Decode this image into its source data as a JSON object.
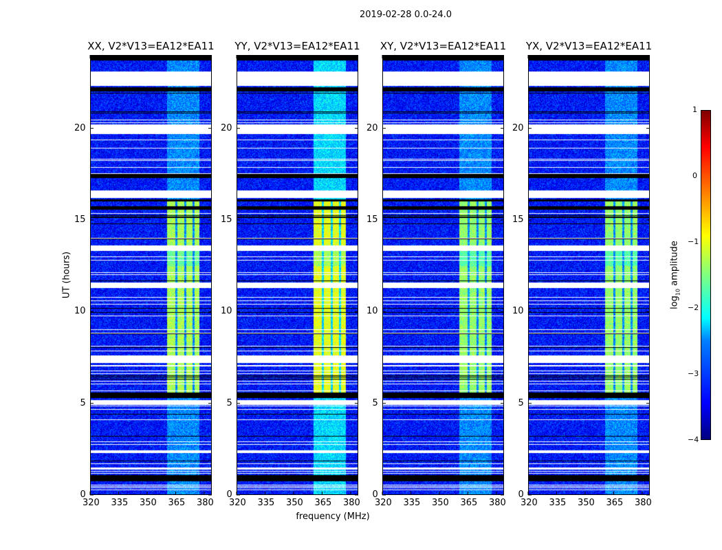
{
  "chart_data": {
    "type": "heatmap",
    "title": "2019-02-28 0.0-24.0",
    "xlabel": "frequency (MHz)",
    "ylabel": "UT (hours)",
    "xlim": [
      320,
      384
    ],
    "ylim": [
      0,
      24
    ],
    "xticks": [
      "320",
      "335",
      "350",
      "365",
      "380"
    ],
    "yticks": [
      "0",
      "5",
      "10",
      "15",
      "20"
    ],
    "panels": [
      {
        "title": "XX, V2*V13=EA12*EA11",
        "signal_level": -1.3
      },
      {
        "title": "YY, V2*V13=EA12*EA11",
        "signal_level": -1.0
      },
      {
        "title": "XY, V2*V13=EA12*EA11",
        "signal_level": -1.4
      },
      {
        "title": "YX, V2*V13=EA12*EA11",
        "signal_level": -1.4
      }
    ],
    "noise_level": -3.3,
    "signal_band_mhz": [
      360.5,
      377.5
    ],
    "signal_active_hours": [
      5.6,
      16.0
    ],
    "flagged_hours_white": [
      [
        22.3,
        23.1
      ],
      [
        19.7,
        20.2
      ],
      [
        16.2,
        16.6
      ],
      [
        13.3,
        13.6
      ],
      [
        11.3,
        11.6
      ],
      [
        7.2,
        7.6
      ],
      [
        4.95,
        5.15
      ],
      [
        2.3,
        2.45
      ],
      [
        1.4,
        1.5
      ]
    ],
    "zero_hours_black": [
      [
        23.7,
        24
      ],
      [
        22.0,
        22.25
      ],
      [
        17.3,
        17.5
      ],
      [
        16.0,
        16.1
      ],
      [
        15.55,
        15.75
      ],
      [
        5.3,
        5.6
      ],
      [
        0.8,
        1.1
      ]
    ],
    "colorbar": {
      "label": "log10 amplitude",
      "ticks": [
        "1",
        "0",
        "−1",
        "−2",
        "−3",
        "−4"
      ],
      "range": [
        -4,
        1
      ],
      "colormap": "jet"
    }
  }
}
